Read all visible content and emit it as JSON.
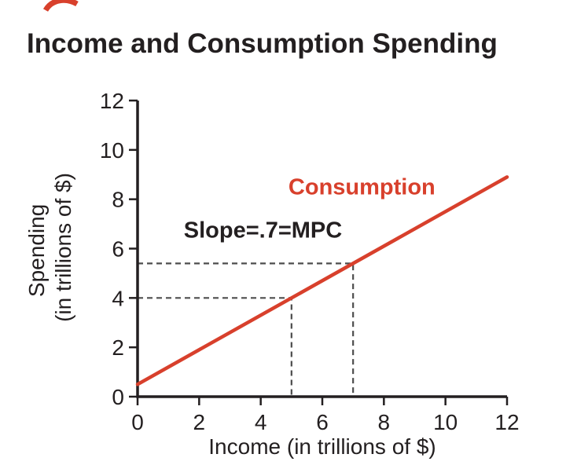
{
  "chart_data": {
    "type": "line",
    "title": "Income and Consumption Spending",
    "xlabel": "Income (in trillions of $)",
    "ylabel": "Spending (in trillions of $)",
    "ylabel_lines": [
      "Spending",
      "(in trillions of $)"
    ],
    "xlim": [
      0,
      12
    ],
    "ylim": [
      0,
      12
    ],
    "xticks": [
      0,
      2,
      4,
      6,
      8,
      10,
      12
    ],
    "yticks": [
      0,
      2,
      4,
      6,
      8,
      10,
      12
    ],
    "grid": false,
    "legend": "none",
    "colors": {
      "axis": "#231f20",
      "dashed": "#4d4d4d",
      "accent": "#d8402c"
    },
    "series": [
      {
        "name": "Consumption",
        "color": "#d8402c",
        "slope": 0.7,
        "x": [
          0,
          12
        ],
        "y": [
          0.5,
          8.9
        ]
      }
    ],
    "annotations": [
      {
        "name": "consumption-label",
        "text": "Consumption",
        "x": 4.9,
        "y": 8.2,
        "color": "#d8402c"
      },
      {
        "name": "slope-mpc-label",
        "text": "Slope=.7=MPC",
        "x": 1.5,
        "y": 6.45,
        "color": "#231f20"
      }
    ],
    "reference_points": [
      {
        "x": 5,
        "y": 4
      },
      {
        "x": 7,
        "y": 5.4
      }
    ]
  }
}
